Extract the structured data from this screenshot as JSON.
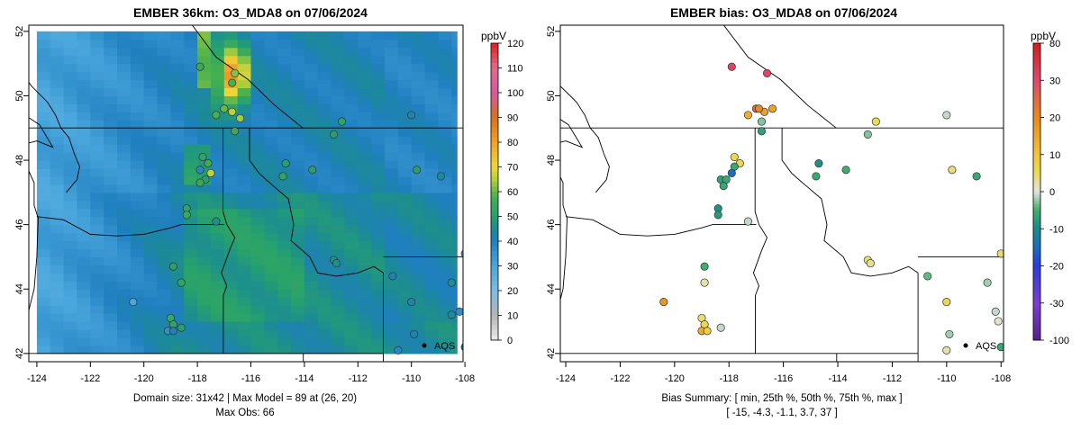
{
  "left_panel": {
    "title": "EMBER 36km: O3_MDA8 on 07/06/2024",
    "caption_line1": "Domain size: 31x42 | Max Model = 89 at (26, 20)",
    "caption_line2": "Max Obs: 66",
    "colorbar_unit": "ppbV",
    "colorbar_ticks": [
      "120",
      "110",
      "100",
      "90",
      "80",
      "70",
      "60",
      "50",
      "40",
      "30",
      "20",
      "10",
      "0"
    ],
    "legend_label": "AQS"
  },
  "right_panel": {
    "title": "EMBER bias: O3_MDA8 on 07/06/2024",
    "caption_line1": "Bias Summary: [ min, 25th %, 50th %, 75th %, max ]",
    "caption_line2": "[ -15,   -4.3,   -1.1,   3.7,   37 ]",
    "colorbar_unit": "ppbV",
    "colorbar_ticks": [
      "80",
      "30",
      "20",
      "10",
      "0",
      "-10",
      "-20",
      "-30",
      "-100"
    ],
    "legend_label": "AQS"
  },
  "axes": {
    "lon_ticks": [
      "-124",
      "-122",
      "-120",
      "-118",
      "-116",
      "-114",
      "-112",
      "-110",
      "-108"
    ],
    "lat_ticks": [
      "42",
      "44",
      "46",
      "48",
      "50",
      "52"
    ]
  },
  "chart_data": [
    {
      "type": "heatmap",
      "title": "EMBER 36km: O3_MDA8 on 07/06/2024",
      "x_range": [
        -124.2,
        -107.8
      ],
      "y_range": [
        41.9,
        52.3
      ],
      "colorbar": {
        "unit": "ppbV",
        "range": [
          0,
          120
        ]
      },
      "grid_extent": {
        "lon": [
          -124.0,
          -108.3
        ],
        "lat": [
          42.0,
          52.0
        ]
      },
      "max_model": 89,
      "max_obs": 66,
      "stations": [
        {
          "lon": -117.9,
          "lat": 50.9,
          "value": 55
        },
        {
          "lon": -116.6,
          "lat": 50.7,
          "value": 62
        },
        {
          "lon": -116.7,
          "lat": 50.4,
          "value": 58
        },
        {
          "lon": -117.0,
          "lat": 49.6,
          "value": 60
        },
        {
          "lon": -116.7,
          "lat": 49.5,
          "value": 66
        },
        {
          "lon": -116.4,
          "lat": 49.3,
          "value": 64
        },
        {
          "lon": -116.6,
          "lat": 48.9,
          "value": 55
        },
        {
          "lon": -117.3,
          "lat": 49.4,
          "value": 58
        },
        {
          "lon": -117.8,
          "lat": 48.1,
          "value": 52
        },
        {
          "lon": -117.6,
          "lat": 47.9,
          "value": 56
        },
        {
          "lon": -117.5,
          "lat": 47.6,
          "value": 66
        },
        {
          "lon": -117.9,
          "lat": 47.7,
          "value": 38
        },
        {
          "lon": -117.7,
          "lat": 47.4,
          "value": 50
        },
        {
          "lon": -117.9,
          "lat": 47.3,
          "value": 54
        },
        {
          "lon": -118.4,
          "lat": 46.5,
          "value": 52
        },
        {
          "lon": -118.4,
          "lat": 46.3,
          "value": 54
        },
        {
          "lon": -117.3,
          "lat": 46.1,
          "value": 46
        },
        {
          "lon": -114.7,
          "lat": 47.9,
          "value": 50
        },
        {
          "lon": -114.8,
          "lat": 47.5,
          "value": 52
        },
        {
          "lon": -113.7,
          "lat": 47.7,
          "value": 50
        },
        {
          "lon": -112.9,
          "lat": 48.8,
          "value": 50
        },
        {
          "lon": -112.6,
          "lat": 49.2,
          "value": 52
        },
        {
          "lon": -110.0,
          "lat": 49.4,
          "value": 42
        },
        {
          "lon": -109.8,
          "lat": 47.7,
          "value": 50
        },
        {
          "lon": -108.9,
          "lat": 47.5,
          "value": 44
        },
        {
          "lon": -112.9,
          "lat": 44.9,
          "value": 46
        },
        {
          "lon": -112.8,
          "lat": 44.8,
          "value": 46
        },
        {
          "lon": -110.7,
          "lat": 44.4,
          "value": 42
        },
        {
          "lon": -110.0,
          "lat": 43.6,
          "value": 42
        },
        {
          "lon": -108.5,
          "lat": 44.2,
          "value": 46
        },
        {
          "lon": -108.0,
          "lat": 45.1,
          "value": 30
        },
        {
          "lon": -108.2,
          "lat": 43.3,
          "value": 36
        },
        {
          "lon": -108.5,
          "lat": 43.2,
          "value": 44
        },
        {
          "lon": -109.9,
          "lat": 42.6,
          "value": 42
        },
        {
          "lon": -110.5,
          "lat": 42.1,
          "value": 38
        },
        {
          "lon": -108.0,
          "lat": 42.2,
          "value": 40
        },
        {
          "lon": -120.4,
          "lat": 43.6,
          "value": 30
        },
        {
          "lon": -118.9,
          "lat": 44.7,
          "value": 50
        },
        {
          "lon": -118.6,
          "lat": 44.2,
          "value": 52
        },
        {
          "lon": -119.0,
          "lat": 43.1,
          "value": 54
        },
        {
          "lon": -118.9,
          "lat": 42.9,
          "value": 52
        },
        {
          "lon": -118.6,
          "lat": 42.8,
          "value": 50
        },
        {
          "lon": -119.1,
          "lat": 42.7,
          "value": 36
        },
        {
          "lon": -118.9,
          "lat": 42.7,
          "value": 40
        }
      ]
    },
    {
      "type": "scatter",
      "title": "EMBER bias: O3_MDA8 on 07/06/2024",
      "x_range": [
        -124.2,
        -107.8
      ],
      "y_range": [
        41.9,
        52.3
      ],
      "colorbar": {
        "unit": "ppbV",
        "breaks": [
          -100,
          -30,
          -20,
          -10,
          0,
          10,
          20,
          30,
          80
        ]
      },
      "summary": {
        "min": -15,
        "p25": -4.3,
        "p50": -1.1,
        "p75": 3.7,
        "max": 37
      },
      "stations": [
        {
          "lon": -117.9,
          "lat": 50.9,
          "value": 36
        },
        {
          "lon": -116.6,
          "lat": 50.7,
          "value": 34
        },
        {
          "lon": -117.0,
          "lat": 49.6,
          "value": 26
        },
        {
          "lon": -116.7,
          "lat": 49.5,
          "value": 16
        },
        {
          "lon": -116.4,
          "lat": 49.6,
          "value": 16
        },
        {
          "lon": -116.9,
          "lat": 49.6,
          "value": 20
        },
        {
          "lon": -117.3,
          "lat": 49.4,
          "value": 14
        },
        {
          "lon": -116.8,
          "lat": 49.2,
          "value": -3
        },
        {
          "lon": -116.8,
          "lat": 48.9,
          "value": -7
        },
        {
          "lon": -117.8,
          "lat": 48.1,
          "value": 6
        },
        {
          "lon": -117.6,
          "lat": 47.9,
          "value": 6
        },
        {
          "lon": -117.8,
          "lat": 47.8,
          "value": -6
        },
        {
          "lon": -117.9,
          "lat": 47.6,
          "value": -15
        },
        {
          "lon": -118.3,
          "lat": 47.4,
          "value": -7
        },
        {
          "lon": -118.1,
          "lat": 47.4,
          "value": -6
        },
        {
          "lon": -118.2,
          "lat": 47.2,
          "value": -6
        },
        {
          "lon": -118.4,
          "lat": 46.5,
          "value": -9
        },
        {
          "lon": -118.4,
          "lat": 46.3,
          "value": -8
        },
        {
          "lon": -117.3,
          "lat": 46.1,
          "value": -1
        },
        {
          "lon": -114.7,
          "lat": 47.9,
          "value": -9
        },
        {
          "lon": -114.8,
          "lat": 47.5,
          "value": -6
        },
        {
          "lon": -113.7,
          "lat": 47.7,
          "value": -5
        },
        {
          "lon": -112.9,
          "lat": 48.8,
          "value": -3
        },
        {
          "lon": -112.6,
          "lat": 49.2,
          "value": 5
        },
        {
          "lon": -110.0,
          "lat": 49.4,
          "value": -1
        },
        {
          "lon": -109.8,
          "lat": 47.7,
          "value": 4
        },
        {
          "lon": -108.9,
          "lat": 47.5,
          "value": -6
        },
        {
          "lon": -112.9,
          "lat": 44.9,
          "value": 4
        },
        {
          "lon": -112.8,
          "lat": 44.8,
          "value": 3
        },
        {
          "lon": -110.7,
          "lat": 44.4,
          "value": -4
        },
        {
          "lon": -110.0,
          "lat": 43.6,
          "value": 6
        },
        {
          "lon": -108.5,
          "lat": 44.2,
          "value": -2
        },
        {
          "lon": -108.0,
          "lat": 45.1,
          "value": 4
        },
        {
          "lon": -108.2,
          "lat": 43.3,
          "value": -1
        },
        {
          "lon": -108.1,
          "lat": 43.0,
          "value": 1
        },
        {
          "lon": -109.9,
          "lat": 42.6,
          "value": -2
        },
        {
          "lon": -110.0,
          "lat": 42.1,
          "value": 2
        },
        {
          "lon": -108.0,
          "lat": 42.2,
          "value": -6
        },
        {
          "lon": -120.4,
          "lat": 43.6,
          "value": 18
        },
        {
          "lon": -118.9,
          "lat": 44.7,
          "value": -5
        },
        {
          "lon": -118.9,
          "lat": 44.2,
          "value": 2
        },
        {
          "lon": -119.0,
          "lat": 43.1,
          "value": 4
        },
        {
          "lon": -118.9,
          "lat": 42.9,
          "value": 6
        },
        {
          "lon": -118.3,
          "lat": 42.8,
          "value": -1
        },
        {
          "lon": -119.0,
          "lat": 42.7,
          "value": 14
        },
        {
          "lon": -118.8,
          "lat": 42.7,
          "value": 8
        }
      ]
    }
  ]
}
